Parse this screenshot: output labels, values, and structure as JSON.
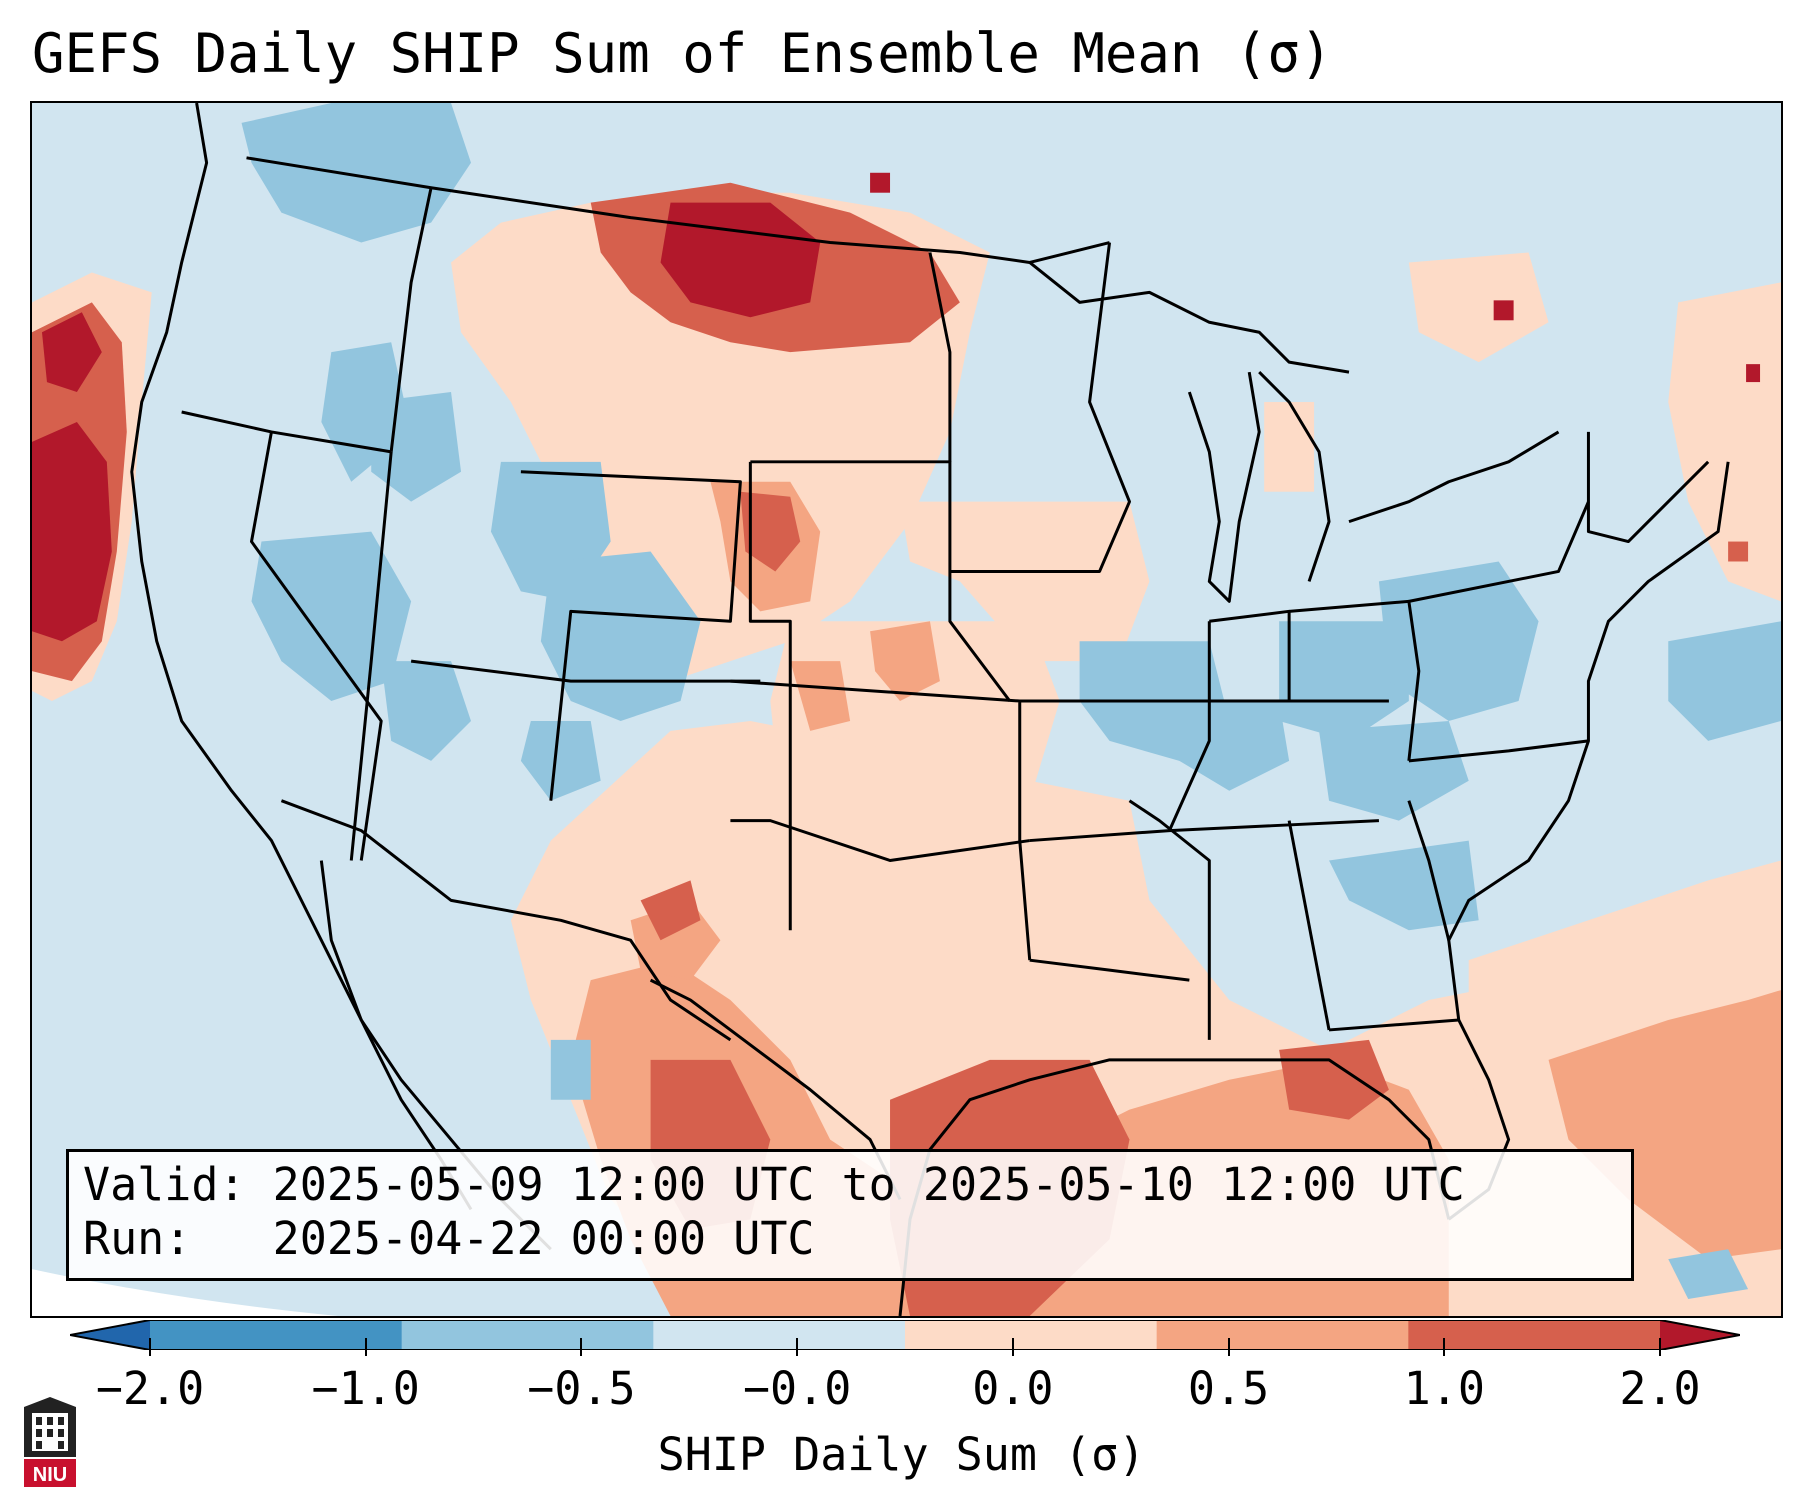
{
  "title": "GEFS Daily SHIP Sum of Ensemble Mean (σ)",
  "info": {
    "valid_label": "Valid:",
    "valid_value": "2025-05-09 12:00 UTC to 2025-05-10 12:00 UTC",
    "run_label": "Run:",
    "run_value": "2025-04-22 00:00 UTC"
  },
  "colorbar": {
    "label": "SHIP Daily Sum (σ)",
    "ticks": [
      "−2.0",
      "−1.0",
      "−0.5",
      "−0.0",
      "0.0",
      "0.5",
      "1.0",
      "2.0"
    ],
    "colors": [
      "#2166ac",
      "#4393c3",
      "#92c5de",
      "#d1e5f0",
      "#fddbc7",
      "#f4a582",
      "#d6604d",
      "#b2182b"
    ]
  },
  "logo": {
    "text": "NIU",
    "icon": "university-tower-icon"
  }
}
